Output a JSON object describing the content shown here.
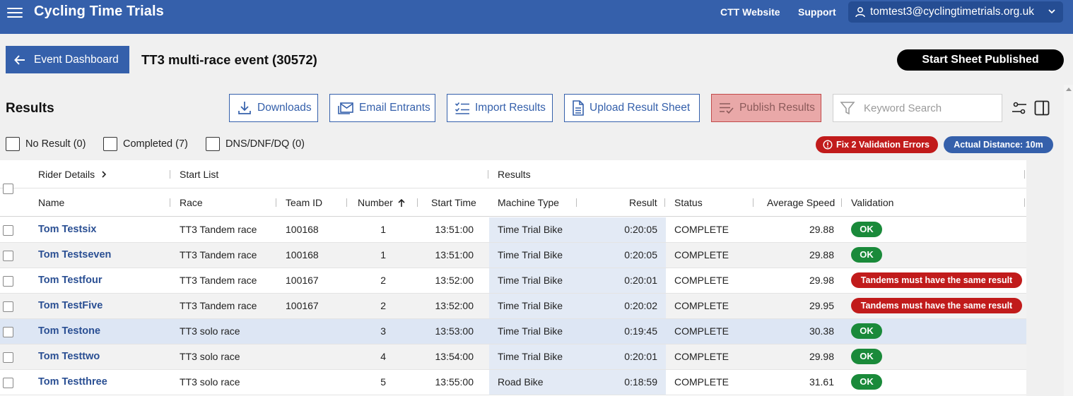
{
  "topbar": {
    "brand": "Cycling Time Trials",
    "links": [
      "CTT Website",
      "Support"
    ],
    "user_email": "tomtest3@cyclingtimetrials.org.uk"
  },
  "header": {
    "back_label": "Event Dashboard",
    "event_title": "TT3 multi-race event (30572)",
    "status_pill": "Start Sheet Published"
  },
  "toolbar": {
    "section_title": "Results",
    "downloads": "Downloads",
    "email": "Email Entrants",
    "import": "Import Results",
    "upload": "Upload Result Sheet",
    "publish": "Publish Results",
    "search_placeholder": "Keyword Search"
  },
  "filters": {
    "no_result": "No Result (0)",
    "completed": "Completed (7)",
    "dns": "DNS/DNF/DQ (0)"
  },
  "badges": {
    "errors": "Fix 2 Validation Errors",
    "distance": "Actual Distance: 10m"
  },
  "table": {
    "groups": {
      "rider": "Rider Details",
      "start_list": "Start List",
      "results": "Results"
    },
    "columns": {
      "name": "Name",
      "race": "Race",
      "team": "Team ID",
      "number": "Number",
      "start": "Start Time",
      "machine": "Machine Type",
      "result": "Result",
      "status": "Status",
      "speed": "Average Speed",
      "validation": "Validation"
    },
    "rows": [
      {
        "name": "Tom Testsix",
        "race": "TT3 Tandem race",
        "team": "100168",
        "number": "1",
        "start": "13:51:00",
        "machine": "Time Trial Bike",
        "result": "0:20:05",
        "status": "COMPLETE",
        "speed": "29.88",
        "validation": "OK"
      },
      {
        "name": "Tom Testseven",
        "race": "TT3 Tandem race",
        "team": "100168",
        "number": "1",
        "start": "13:51:00",
        "machine": "Time Trial Bike",
        "result": "0:20:05",
        "status": "COMPLETE",
        "speed": "29.88",
        "validation": "OK"
      },
      {
        "name": "Tom Testfour",
        "race": "TT3 Tandem race",
        "team": "100167",
        "number": "2",
        "start": "13:52:00",
        "machine": "Time Trial Bike",
        "result": "0:20:01",
        "status": "COMPLETE",
        "speed": "29.98",
        "validation": "Tandems must have the same result"
      },
      {
        "name": "Tom TestFive",
        "race": "TT3 Tandem race",
        "team": "100167",
        "number": "2",
        "start": "13:52:00",
        "machine": "Time Trial Bike",
        "result": "0:20:02",
        "status": "COMPLETE",
        "speed": "29.95",
        "validation": "Tandems must have the same result"
      },
      {
        "name": "Tom Testone",
        "race": "TT3 solo race",
        "team": "",
        "number": "3",
        "start": "13:53:00",
        "machine": "Time Trial Bike",
        "result": "0:19:45",
        "status": "COMPLETE",
        "speed": "30.38",
        "validation": "OK"
      },
      {
        "name": "Tom Testtwo",
        "race": "TT3 solo race",
        "team": "",
        "number": "4",
        "start": "13:54:00",
        "machine": "Time Trial Bike",
        "result": "0:20:01",
        "status": "COMPLETE",
        "speed": "29.98",
        "validation": "OK"
      },
      {
        "name": "Tom Testthree",
        "race": "TT3 solo race",
        "team": "",
        "number": "5",
        "start": "13:55:00",
        "machine": "Road Bike",
        "result": "0:18:59",
        "status": "COMPLETE",
        "speed": "31.61",
        "validation": "OK"
      }
    ]
  },
  "colors": {
    "brand": "#3560ab",
    "error": "#c11b1b",
    "ok": "#1a8a3a"
  }
}
